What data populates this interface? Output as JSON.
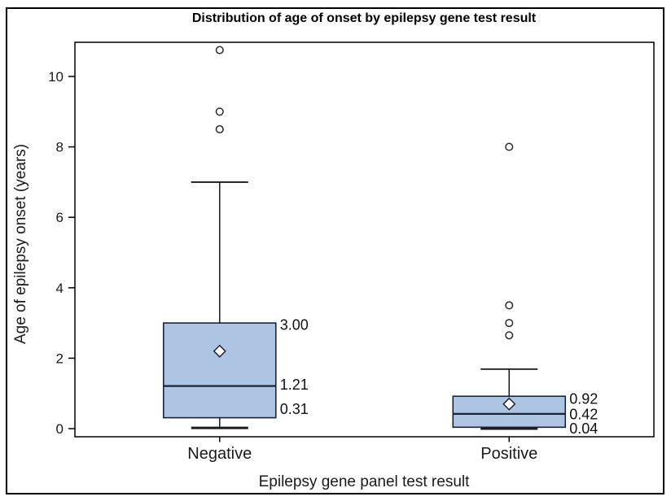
{
  "chart_data": {
    "type": "boxplot",
    "title": "Distribution of age of onset by epilepsy gene test result",
    "xlabel": "Epilepsy gene panel test result",
    "ylabel": "Age of epilepsy onset (years)",
    "ylim": [
      -0.23,
      10.97
    ],
    "yticks": [
      0,
      2,
      4,
      6,
      8,
      10
    ],
    "grid": false,
    "legend": null,
    "categories": [
      "Negative",
      "Positive"
    ],
    "series": [
      {
        "category": "Negative",
        "q1": 0.31,
        "median": 1.21,
        "q3": 3.0,
        "whisker_low": 0.02,
        "whisker_high": 7.0,
        "mean": 2.2,
        "outliers": [
          8.5,
          9.0,
          10.75
        ],
        "value_labels": [
          {
            "text": "3.00",
            "y": 2.95
          },
          {
            "text": "1.21",
            "y": 1.25
          },
          {
            "text": "0.31",
            "y": 0.55
          }
        ]
      },
      {
        "category": "Positive",
        "q1": 0.04,
        "median": 0.42,
        "q3": 0.92,
        "whisker_low": 0.0,
        "whisker_high": 1.69,
        "mean": 0.7,
        "outliers": [
          2.65,
          3.0,
          3.5,
          8.0
        ],
        "value_labels": [
          {
            "text": "0.92",
            "y": 0.84
          },
          {
            "text": "0.42",
            "y": 0.4
          },
          {
            "text": "0.04",
            "y": 0.0
          }
        ]
      }
    ],
    "colors": {
      "background": "#ffffff",
      "box_fill": "#adc5e2",
      "box_stroke": "#1c2434",
      "whisker": "#1a1a1a",
      "outlier_stroke": "#2a2a2a",
      "mean_fill": "#ffffff",
      "axis": "#000000"
    }
  }
}
